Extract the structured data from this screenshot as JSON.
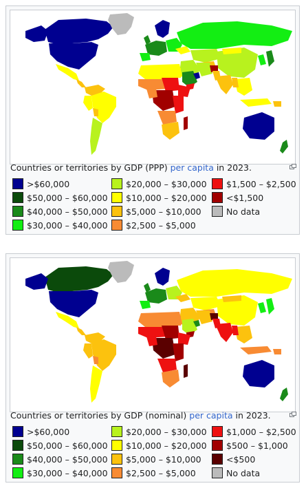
{
  "figures": [
    {
      "id": "ppp",
      "caption": {
        "before": "Countries or territories by GDP (PPP) ",
        "link": "per capita",
        "after": " in 2023."
      },
      "legend": [
        [
          {
            "label": ">$60,000",
            "color": "#000090"
          },
          {
            "label": "$50,000 – $60,000",
            "color": "#0b4a0b"
          },
          {
            "label": "$40,000 – $50,000",
            "color": "#1a8a1a"
          },
          {
            "label": "$30,000 – $40,000",
            "color": "#13ee13"
          }
        ],
        [
          {
            "label": "$20,000 – $30,000",
            "color": "#b8f21e"
          },
          {
            "label": "$10,000 – $20,000",
            "color": "#ffff00"
          },
          {
            "label": "$5,000 – $10,000",
            "color": "#fcc20e"
          },
          {
            "label": "$2,500 – $5,000",
            "color": "#f88b33"
          }
        ],
        [
          {
            "label": "$1,500 – $2,500",
            "color": "#ee1111"
          },
          {
            "label": "<$1,500",
            "color": "#a10000"
          },
          {
            "label": "No data",
            "color": "#bbbbbb"
          }
        ]
      ]
    },
    {
      "id": "nominal",
      "caption": {
        "before": "Countries or territories by GDP (nominal) ",
        "link": "per capita",
        "after": " in 2023."
      },
      "legend": [
        [
          {
            "label": ">$60,000",
            "color": "#000090"
          },
          {
            "label": "$50,000 – $60,000",
            "color": "#0b4a0b"
          },
          {
            "label": "$40,000 – $50,000",
            "color": "#1a8a1a"
          },
          {
            "label": "$30,000 – $40,000",
            "color": "#13ee13"
          }
        ],
        [
          {
            "label": "$20,000 – $30,000",
            "color": "#b8f21e"
          },
          {
            "label": "$10,000 – $20,000",
            "color": "#ffff00"
          },
          {
            "label": "$5,000 – $10,000",
            "color": "#fcc20e"
          },
          {
            "label": "$2,500 – $5,000",
            "color": "#f88b33"
          }
        ],
        [
          {
            "label": "$1,000 – $2,500",
            "color": "#ee1111"
          },
          {
            "label": "$500 – $1,000",
            "color": "#a10000"
          },
          {
            "label": "<$500",
            "color": "#5a0000"
          },
          {
            "label": "No data",
            "color": "#bbbbbb"
          }
        ]
      ]
    }
  ]
}
